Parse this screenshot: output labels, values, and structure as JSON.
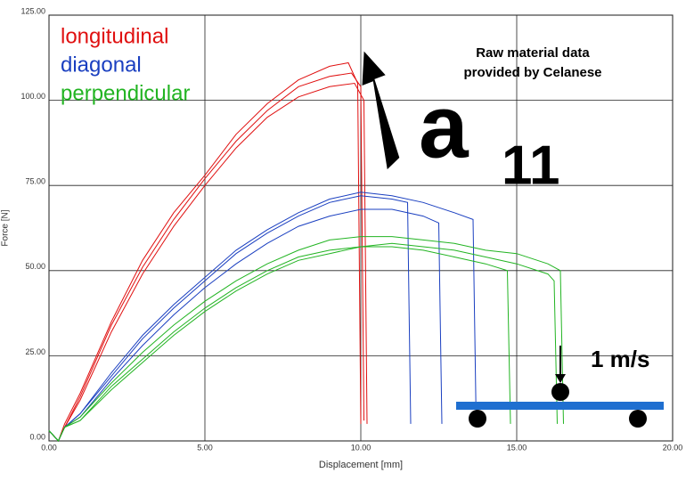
{
  "chart_data": {
    "type": "line",
    "x_label": "Displacement [mm]",
    "y_label": "Force [N]",
    "xlim": [
      0,
      20
    ],
    "ylim": [
      0,
      125
    ],
    "xticks": [
      {
        "value": 0,
        "label": "0.00"
      },
      {
        "value": 5,
        "label": "5.00"
      },
      {
        "value": 10,
        "label": "10.00"
      },
      {
        "value": 15,
        "label": "15.00"
      },
      {
        "value": 20,
        "label": "20.00"
      }
    ],
    "yticks": [
      {
        "value": 0,
        "label": "0.00"
      },
      {
        "value": 25,
        "label": "25.00"
      },
      {
        "value": 50,
        "label": "50.00"
      },
      {
        "value": 75,
        "label": "75.00"
      },
      {
        "value": 100,
        "label": "100.00"
      },
      {
        "value": 125,
        "label": "125.00"
      }
    ],
    "grid": true,
    "annotations": {
      "source": "Raw material data provided by Celanese",
      "symbol": "a",
      "subscript": "11",
      "speed": "1 m/s"
    },
    "series": [
      {
        "name": "longitudinal",
        "color": "#e01010",
        "curves": [
          {
            "x": [
              0,
              0.3,
              0.5,
              1,
              2,
              3,
              4,
              5,
              6,
              7,
              8,
              9,
              9.6,
              9.9,
              10.0
            ],
            "values": [
              3,
              0,
              5,
              14,
              35,
              53,
              67,
              78,
              90,
              99,
              106,
              110,
              111,
              105,
              5
            ]
          },
          {
            "x": [
              0,
              0.3,
              0.5,
              1,
              2,
              3,
              4,
              5,
              6,
              7,
              8,
              9,
              9.7,
              10.0,
              10.1
            ],
            "values": [
              3,
              0,
              4,
              13,
              34,
              51,
              65,
              77,
              88,
              97,
              104,
              107,
              108,
              104,
              6
            ]
          },
          {
            "x": [
              0,
              0.3,
              0.5,
              1,
              2,
              3,
              4,
              5,
              6,
              7,
              8,
              9,
              9.8,
              10.1,
              10.2
            ],
            "values": [
              3,
              0,
              4,
              12,
              32,
              49,
              63,
              75,
              86,
              95,
              101,
              104,
              105,
              100,
              5
            ]
          }
        ]
      },
      {
        "name": "diagonal",
        "color": "#1a3fc0",
        "curves": [
          {
            "x": [
              0,
              0.3,
              0.5,
              1,
              2,
              3,
              4,
              5,
              6,
              7,
              8,
              9,
              10,
              11,
              12,
              13,
              13.6,
              13.7
            ],
            "values": [
              3,
              0,
              4,
              8,
              20,
              31,
              40,
              48,
              56,
              62,
              67,
              71,
              73,
              72,
              70,
              67,
              65,
              5
            ]
          },
          {
            "x": [
              0,
              0.3,
              0.5,
              1,
              2,
              3,
              4,
              5,
              6,
              7,
              8,
              9,
              10,
              11,
              11.5,
              11.6
            ],
            "values": [
              3,
              0,
              4,
              8,
              19,
              30,
              39,
              47,
              55,
              61,
              66,
              70,
              72,
              71,
              70,
              5
            ]
          },
          {
            "x": [
              0,
              0.3,
              0.5,
              1,
              2,
              3,
              4,
              5,
              6,
              7,
              8,
              9,
              10,
              11,
              12,
              12.5,
              12.6
            ],
            "values": [
              3,
              0,
              4,
              7,
              18,
              28,
              37,
              45,
              52,
              58,
              63,
              66,
              68,
              68,
              66,
              64,
              5
            ]
          }
        ]
      },
      {
        "name": "perpendicular",
        "color": "#22b422",
        "curves": [
          {
            "x": [
              0,
              0.3,
              0.5,
              1,
              2,
              3,
              4,
              5,
              6,
              7,
              8,
              9,
              10,
              11,
              12,
              13,
              14,
              15,
              16,
              16.4,
              16.5
            ],
            "values": [
              3,
              0,
              4,
              7,
              17,
              26,
              34,
              41,
              47,
              52,
              56,
              59,
              60,
              60,
              59,
              58,
              56,
              55,
              52,
              50,
              5
            ]
          },
          {
            "x": [
              0,
              0.3,
              0.5,
              1,
              2,
              3,
              4,
              5,
              6,
              7,
              8,
              9,
              10,
              11,
              12,
              13,
              14,
              14.7,
              14.8
            ],
            "values": [
              3,
              0,
              4,
              6,
              16,
              24,
              32,
              39,
              45,
              50,
              54,
              56,
              57,
              57,
              56,
              54,
              52,
              50,
              5
            ]
          },
          {
            "x": [
              0,
              0.3,
              0.5,
              1,
              2,
              3,
              4,
              5,
              6,
              7,
              8,
              9,
              10,
              11,
              12,
              13,
              14,
              15,
              16,
              16.2,
              16.3
            ],
            "values": [
              3,
              0,
              4,
              6,
              15,
              23,
              31,
              38,
              44,
              49,
              53,
              55,
              57,
              58,
              57,
              56,
              54,
              52,
              49,
              47,
              5
            ]
          }
        ]
      }
    ]
  }
}
